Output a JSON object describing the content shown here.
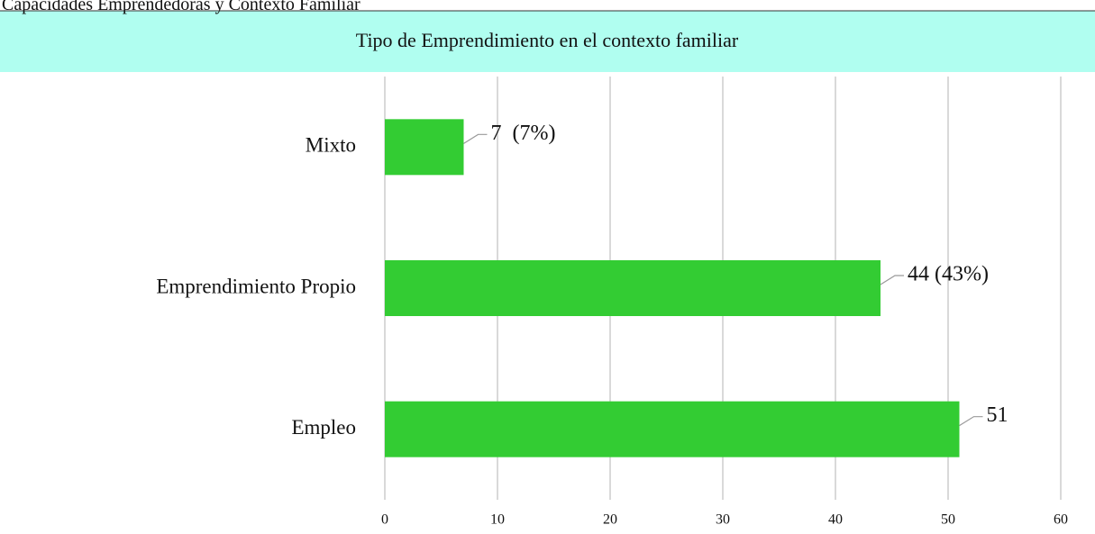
{
  "caption": "Capacidades Emprendedoras y Contexto Familiar",
  "chart_data": {
    "type": "bar",
    "orientation": "horizontal",
    "title": "Tipo de Emprendimiento en el contexto familiar",
    "categories": [
      "Mixto",
      "Emprendimiento Propio",
      "Empleo"
    ],
    "values": [
      7,
      44,
      51
    ],
    "value_labels": [
      "7  (7%)",
      "44 (43%)",
      "51"
    ],
    "color": "#33cc33",
    "xlim": [
      0,
      60
    ],
    "xticks": [
      0,
      10,
      20,
      30,
      40,
      50,
      60
    ],
    "grid": true
  }
}
